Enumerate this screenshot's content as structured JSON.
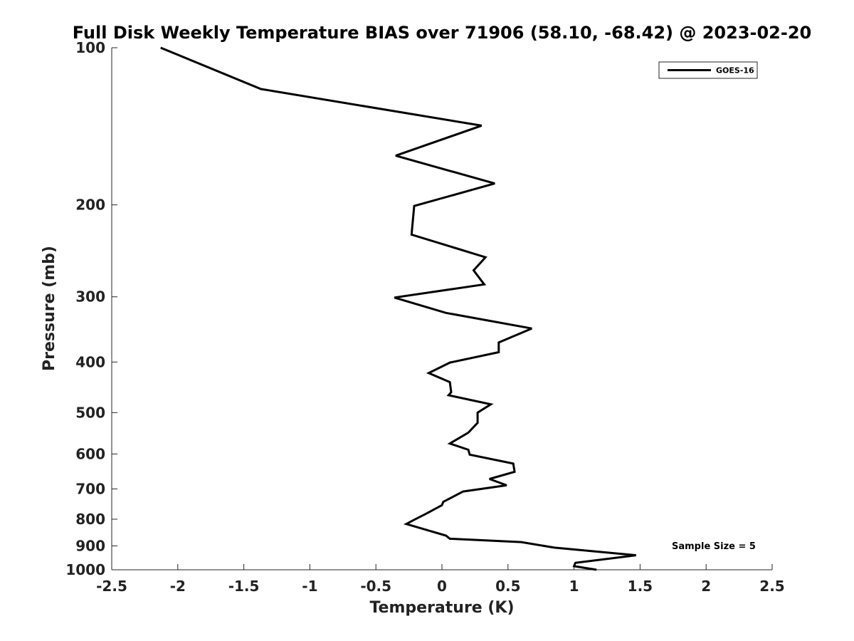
{
  "chart_data": {
    "type": "line",
    "title": "Full Disk Weekly Temperature BIAS over 71906 (58.10, -68.42) @ 2023-02-20",
    "xlabel": "Temperature (K)",
    "ylabel": "Pressure (mb)",
    "xlim": [
      -2.5,
      2.5
    ],
    "ylim": [
      100,
      1000
    ],
    "y_scale": "log",
    "y_reversed": true,
    "x_ticks": [
      -2.5,
      -2,
      -1.5,
      -1,
      -0.5,
      0,
      0.5,
      1,
      1.5,
      2,
      2.5
    ],
    "x_tick_labels": [
      "-2.5",
      "-2",
      "-1.5",
      "-1",
      "-0.5",
      "0",
      "0.5",
      "1",
      "1.5",
      "2",
      "2.5"
    ],
    "y_ticks": [
      100,
      200,
      300,
      400,
      500,
      600,
      700,
      800,
      900,
      1000
    ],
    "y_tick_labels": [
      "100",
      "200",
      "300",
      "400",
      "500",
      "600",
      "700",
      "800",
      "900",
      "1000"
    ],
    "grid": false,
    "legend": {
      "position": "top-right",
      "entries": [
        "GOES-16"
      ]
    },
    "annotation": "Sample Size = 5",
    "series": [
      {
        "name": "GOES-16",
        "color": "#000000",
        "points": [
          {
            "x": -2.13,
            "p": 100
          },
          {
            "x": -1.37,
            "p": 120
          },
          {
            "x": 0.3,
            "p": 141
          },
          {
            "x": -0.35,
            "p": 161
          },
          {
            "x": 0.4,
            "p": 182
          },
          {
            "x": -0.21,
            "p": 201
          },
          {
            "x": -0.23,
            "p": 228
          },
          {
            "x": 0.33,
            "p": 252
          },
          {
            "x": 0.24,
            "p": 267
          },
          {
            "x": 0.32,
            "p": 284
          },
          {
            "x": -0.36,
            "p": 301
          },
          {
            "x": 0.03,
            "p": 322
          },
          {
            "x": 0.68,
            "p": 345
          },
          {
            "x": 0.43,
            "p": 367
          },
          {
            "x": 0.43,
            "p": 383
          },
          {
            "x": 0.06,
            "p": 401
          },
          {
            "x": -0.1,
            "p": 420
          },
          {
            "x": 0.06,
            "p": 437
          },
          {
            "x": 0.07,
            "p": 457
          },
          {
            "x": 0.05,
            "p": 463
          },
          {
            "x": 0.37,
            "p": 482
          },
          {
            "x": 0.27,
            "p": 500
          },
          {
            "x": 0.27,
            "p": 523
          },
          {
            "x": 0.2,
            "p": 546
          },
          {
            "x": 0.06,
            "p": 573
          },
          {
            "x": 0.2,
            "p": 589
          },
          {
            "x": 0.21,
            "p": 602
          },
          {
            "x": 0.54,
            "p": 626
          },
          {
            "x": 0.55,
            "p": 649
          },
          {
            "x": 0.36,
            "p": 670
          },
          {
            "x": 0.49,
            "p": 689
          },
          {
            "x": 0.16,
            "p": 708
          },
          {
            "x": 0.01,
            "p": 741
          },
          {
            "x": 0.0,
            "p": 752
          },
          {
            "x": -0.12,
            "p": 781
          },
          {
            "x": -0.21,
            "p": 802
          },
          {
            "x": -0.27,
            "p": 817
          },
          {
            "x": -0.1,
            "p": 841
          },
          {
            "x": 0.03,
            "p": 860
          },
          {
            "x": 0.06,
            "p": 872
          },
          {
            "x": 0.6,
            "p": 885
          },
          {
            "x": 0.85,
            "p": 907
          },
          {
            "x": 1.47,
            "p": 938
          },
          {
            "x": 1.01,
            "p": 970
          },
          {
            "x": 1.0,
            "p": 984
          },
          {
            "x": 1.17,
            "p": 1000
          }
        ]
      }
    ]
  }
}
